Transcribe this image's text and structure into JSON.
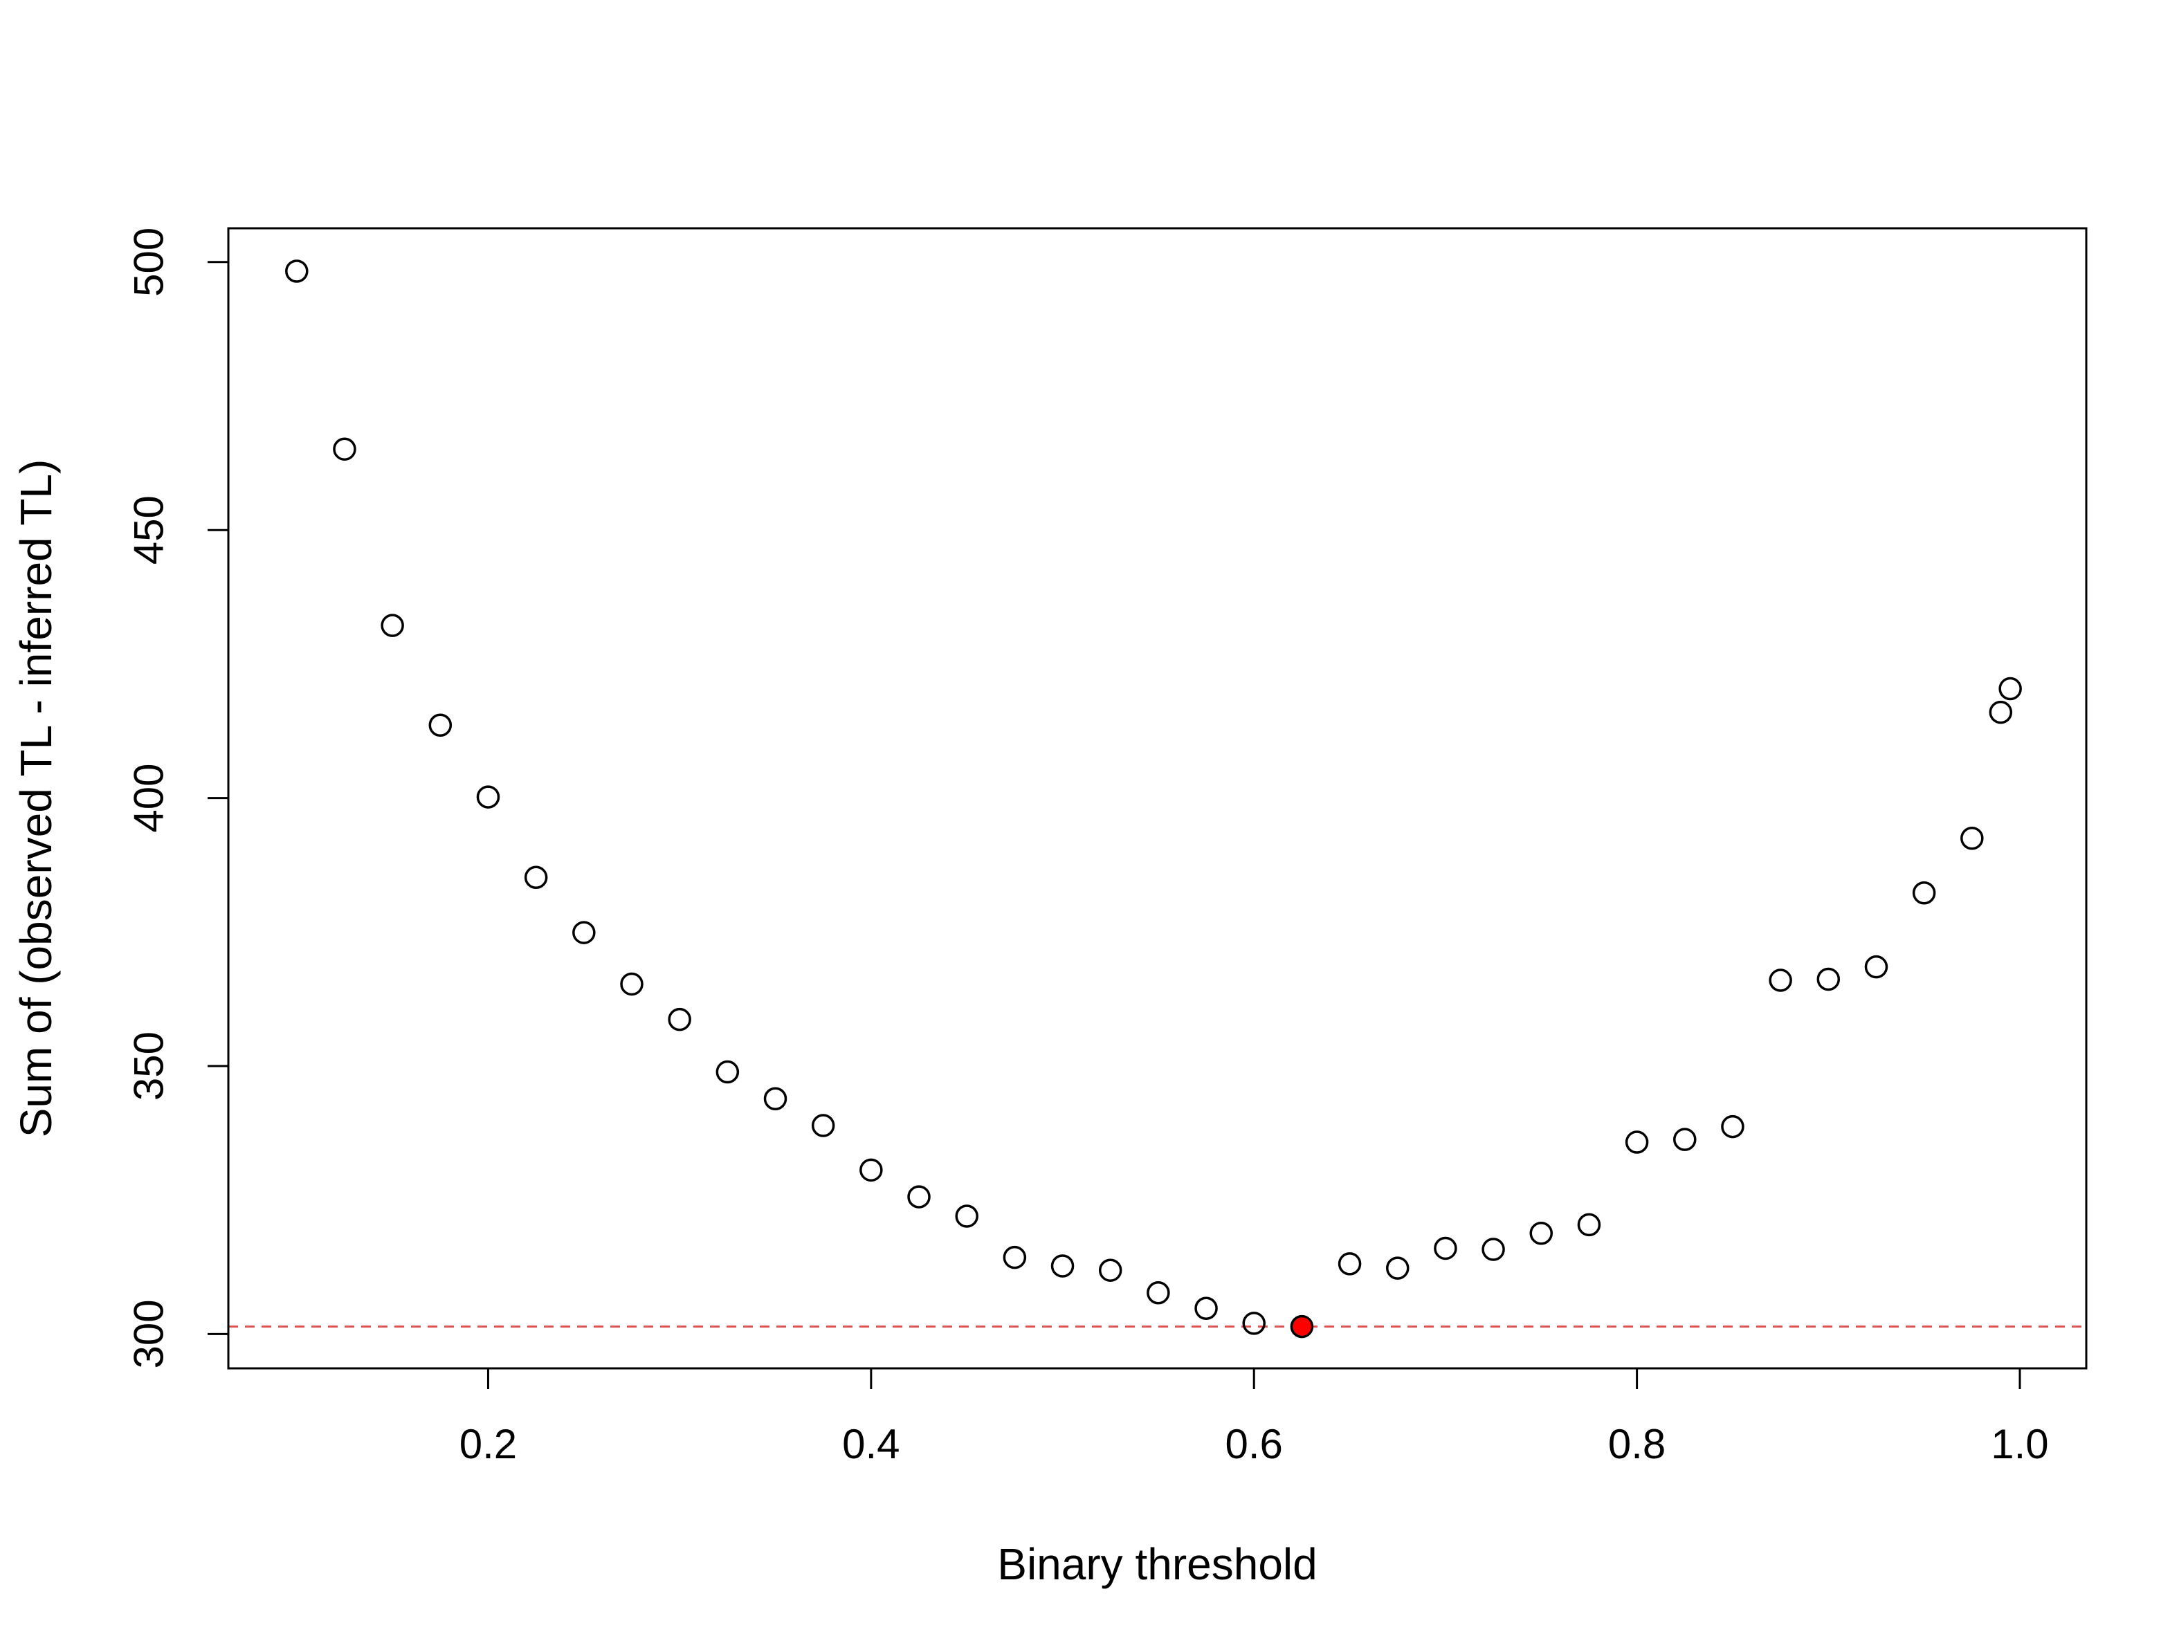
{
  "chart_data": {
    "type": "scatter",
    "title": "",
    "xlabel": "Binary threshold",
    "ylabel": "Sum of (observed TL - inferred TL)",
    "xlim": [
      0.0643,
      1.0347
    ],
    "ylim": [
      293.6,
      506.3
    ],
    "xticks": [
      0.2,
      0.4,
      0.6,
      0.8,
      1.0
    ],
    "xtick_labels": [
      "0.2",
      "0.4",
      "0.6",
      "0.8",
      "1.0"
    ],
    "yticks": [
      300,
      350,
      400,
      450,
      500
    ],
    "ytick_labels": [
      "300",
      "350",
      "400",
      "450",
      "500"
    ],
    "grid": false,
    "legend": "none",
    "x": [
      0.1,
      0.125,
      0.15,
      0.175,
      0.2,
      0.225,
      0.25,
      0.275,
      0.3,
      0.325,
      0.35,
      0.375,
      0.4,
      0.425,
      0.45,
      0.475,
      0.5,
      0.525,
      0.55,
      0.575,
      0.6,
      0.625,
      0.65,
      0.675,
      0.7,
      0.725,
      0.75,
      0.775,
      0.8,
      0.825,
      0.85,
      0.875,
      0.9,
      0.925,
      0.95,
      0.975,
      0.99,
      0.995
    ],
    "y": [
      498.3,
      465.1,
      432.2,
      413.6,
      400.2,
      385.2,
      374.9,
      365.3,
      358.7,
      348.9,
      343.9,
      338.9,
      330.6,
      325.6,
      322.0,
      314.3,
      312.7,
      311.9,
      307.7,
      304.8,
      302.0,
      301.4,
      313.1,
      312.3,
      316.0,
      315.8,
      318.8,
      320.4,
      335.8,
      336.3,
      338.7,
      366.0,
      366.2,
      368.5,
      382.3,
      392.5,
      416.0,
      420.4
    ],
    "highlight": {
      "x": 0.625,
      "y": 301.4,
      "color": "#ff0000"
    },
    "reference_line": {
      "y": 301.4,
      "style": "dashed",
      "color": "#df5353"
    },
    "marker_color": "#000000"
  }
}
